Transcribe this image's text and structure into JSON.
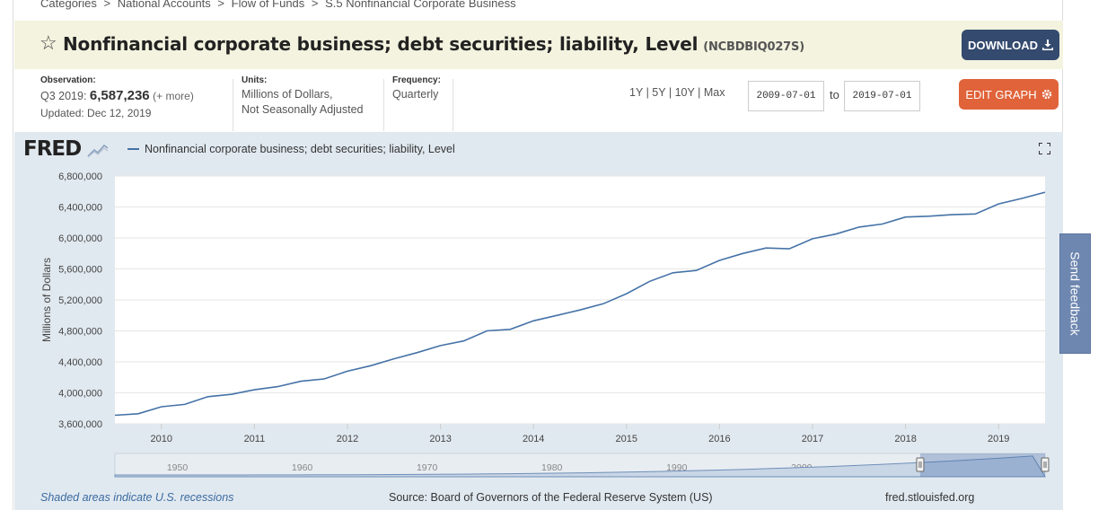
{
  "breadcrumb": [
    "Categories",
    ">",
    "National Accounts",
    ">",
    "Flow of Funds",
    ">",
    "S.5 Nonfinancial Corporate Business"
  ],
  "title": "Nonfinancial corporate business; debt securities; liability, Level",
  "series_id": "(NCBDBIQ027S)",
  "download_label": "DOWNLOAD",
  "observation": {
    "label": "Observation:",
    "period": "Q3 2019:",
    "value": "6,587,236",
    "more": "(+ more)",
    "updated": "Updated: Dec 12, 2019"
  },
  "units": {
    "label": "Units:",
    "line1": "Millions of Dollars,",
    "line2": "Not Seasonally Adjusted"
  },
  "frequency": {
    "label": "Frequency:",
    "value": "Quarterly"
  },
  "ranges": [
    "1Y",
    "|",
    "5Y",
    "|",
    "10Y",
    "|",
    "Max"
  ],
  "date_from": "2009-07-01",
  "to_label": "to",
  "date_to": "2019-07-01",
  "edit_label": "EDIT GRAPH",
  "logo": "FRED",
  "legend_label": "Nonfinancial corporate business; debt securities; liability, Level",
  "footer": {
    "note": "Shaded areas indicate U.S. recessions",
    "source": "Source: Board of Governors of the Federal Reserve System (US)",
    "url": "fred.stlouisfed.org"
  },
  "feedback_label": "Send feedback",
  "colors": {
    "line": "#4572a7",
    "download_btn": "#344a6e",
    "edit_btn": "#e0633a",
    "title_bg": "#f3f3df",
    "graph_bg": "#e1e9f0"
  },
  "chart_data": {
    "type": "line",
    "ylabel": "Millions of Dollars",
    "ylim": [
      3600000,
      6800000
    ],
    "yticks": [
      3600000,
      4000000,
      4400000,
      4800000,
      5200000,
      5600000,
      6000000,
      6400000,
      6800000
    ],
    "ytick_labels": [
      "3,600,000",
      "4,000,000",
      "4,400,000",
      "4,800,000",
      "5,200,000",
      "5,600,000",
      "6,000,000",
      "6,400,000",
      "6,800,000"
    ],
    "xlim": [
      2009.5,
      2019.5
    ],
    "xtick_labels": [
      "2010",
      "2011",
      "2012",
      "2013",
      "2014",
      "2015",
      "2016",
      "2017",
      "2018",
      "2019"
    ],
    "x": [
      2009.5,
      2009.75,
      2010.0,
      2010.25,
      2010.5,
      2010.75,
      2011.0,
      2011.25,
      2011.5,
      2011.75,
      2012.0,
      2012.25,
      2012.5,
      2012.75,
      2013.0,
      2013.25,
      2013.5,
      2013.75,
      2014.0,
      2014.25,
      2014.5,
      2014.75,
      2015.0,
      2015.25,
      2015.5,
      2015.75,
      2016.0,
      2016.25,
      2016.5,
      2016.75,
      2017.0,
      2017.25,
      2017.5,
      2017.75,
      2018.0,
      2018.25,
      2018.5,
      2018.75,
      2019.0,
      2019.25,
      2019.5
    ],
    "series": [
      {
        "values": [
          3710000,
          3730000,
          3820000,
          3850000,
          3950000,
          3980000,
          4040000,
          4080000,
          4150000,
          4180000,
          4280000,
          4350000,
          4440000,
          4520000,
          4610000,
          4670000,
          4800000,
          4820000,
          4930000,
          5000000,
          5070000,
          5150000,
          5280000,
          5440000,
          5550000,
          5580000,
          5710000,
          5800000,
          5870000,
          5860000,
          5990000,
          6050000,
          6140000,
          6180000,
          6270000,
          6280000,
          6300000,
          6310000,
          6440000,
          6510000,
          6590000
        ]
      }
    ],
    "navigator_tick_labels": [
      "1950",
      "1960",
      "1970",
      "1980",
      "1990",
      "2000"
    ],
    "grid": true
  }
}
